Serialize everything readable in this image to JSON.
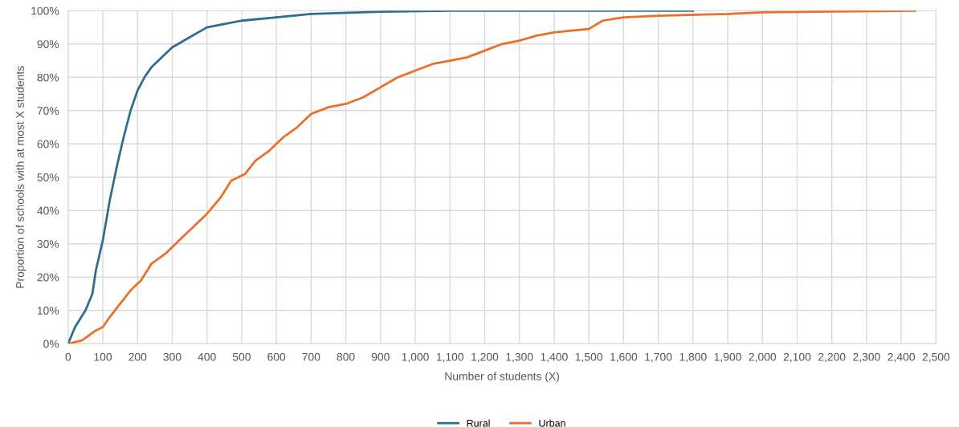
{
  "chart_data": {
    "type": "line",
    "xlabel": "Number of students (X)",
    "ylabel": "Proportion of schools with at most X students",
    "xlim": [
      0,
      2500
    ],
    "ylim": [
      0,
      100
    ],
    "xticks": [
      0,
      100,
      200,
      300,
      400,
      500,
      600,
      700,
      800,
      900,
      {
        "value": 1000,
        "label": "1,000"
      },
      {
        "value": 1100,
        "label": "1,100"
      },
      {
        "value": 1200,
        "label": "1,200"
      },
      {
        "value": 1300,
        "label": "1,300"
      },
      {
        "value": 1400,
        "label": "1,400"
      },
      {
        "value": 1500,
        "label": "1,500"
      },
      {
        "value": 1600,
        "label": "1,600"
      },
      {
        "value": 1700,
        "label": "1,700"
      },
      {
        "value": 1800,
        "label": "1,800"
      },
      {
        "value": 1900,
        "label": "1,900"
      },
      {
        "value": 2000,
        "label": "2,000"
      },
      {
        "value": 2100,
        "label": "2,100"
      },
      {
        "value": 2200,
        "label": "2,200"
      },
      {
        "value": 2300,
        "label": "2,300"
      },
      {
        "value": 2400,
        "label": "2,400"
      },
      {
        "value": 2500,
        "label": "2,500"
      }
    ],
    "yticks": [
      {
        "value": 0,
        "label": "0%"
      },
      {
        "value": 10,
        "label": "10%"
      },
      {
        "value": 20,
        "label": "20%"
      },
      {
        "value": 30,
        "label": "30%"
      },
      {
        "value": 40,
        "label": "40%"
      },
      {
        "value": 50,
        "label": "50%"
      },
      {
        "value": 60,
        "label": "60%"
      },
      {
        "value": 70,
        "label": "70%"
      },
      {
        "value": 80,
        "label": "80%"
      },
      {
        "value": 90,
        "label": "90%"
      },
      {
        "value": 100,
        "label": "100%"
      }
    ],
    "grid": true,
    "legend": "bottom",
    "marker": "none",
    "line_style": "solid",
    "series": [
      {
        "name": "Rural",
        "color": "#2e6e8e",
        "x": [
          0,
          20,
          50,
          70,
          80,
          100,
          120,
          140,
          160,
          180,
          200,
          220,
          240,
          260,
          300,
          350,
          400,
          450,
          500,
          600,
          700,
          900,
          1100,
          1800
        ],
        "values": [
          0,
          5,
          10,
          15,
          22,
          31,
          43,
          53,
          62,
          70,
          76,
          80,
          83,
          85,
          89,
          92,
          95,
          96,
          97,
          98,
          99,
          99.7,
          100,
          100
        ]
      },
      {
        "name": "Urban",
        "color": "#e8702a",
        "x": [
          0,
          40,
          60,
          80,
          100,
          120,
          150,
          180,
          210,
          240,
          280,
          320,
          360,
          400,
          440,
          470,
          510,
          540,
          580,
          620,
          660,
          700,
          750,
          800,
          850,
          900,
          950,
          1000,
          1050,
          1100,
          1150,
          1200,
          1250,
          1300,
          1350,
          1400,
          1450,
          1500,
          1540,
          1600,
          1700,
          1900,
          2000,
          2440
        ],
        "values": [
          0,
          1,
          2.5,
          4,
          5,
          8,
          12,
          16,
          19,
          24,
          27,
          31,
          35,
          39,
          44,
          49,
          51,
          55,
          58,
          62,
          65,
          69,
          71,
          72,
          74,
          77,
          80,
          82,
          84,
          85,
          86,
          88,
          90,
          91,
          92.5,
          93.5,
          94,
          94.5,
          97,
          98,
          98.5,
          99,
          99.5,
          100
        ]
      }
    ]
  }
}
